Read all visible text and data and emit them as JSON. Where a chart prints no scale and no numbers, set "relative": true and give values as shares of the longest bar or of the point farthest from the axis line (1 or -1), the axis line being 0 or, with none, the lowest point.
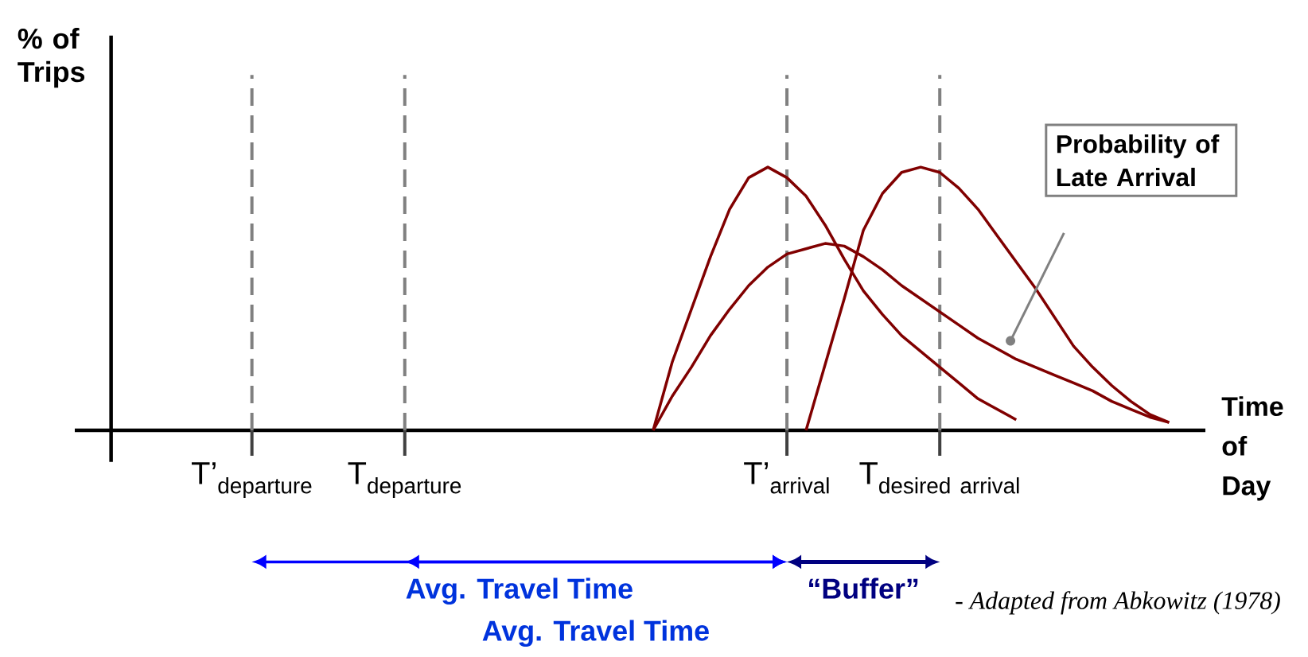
{
  "chart_data": {
    "type": "line",
    "relative": true,
    "ylabel": "% of Trips",
    "xlabel": "Time of Day",
    "categories": [
      null,
      null,
      null,
      null,
      null,
      null,
      null,
      null,
      null,
      "\\mathrm{T’}_{\\mathrm{departure}}",
      null,
      null,
      null,
      null,
      null,
      null,
      null,
      "\\mathrm{T}_{\\mathrm{departure}}",
      null,
      null,
      null,
      null,
      null,
      null,
      null,
      null,
      null,
      null,
      null,
      null,
      null,
      null,
      null,
      null,
      null,
      null,
      null,
      "\\mathrm{T’}_{\\mathrm{arrival}}",
      null,
      null,
      null,
      null,
      null,
      null,
      null,
      "\\mathrm{T}_{\\mathrm{desired\\ arrival}}",
      null,
      null,
      null,
      null,
      null,
      null,
      null,
      null,
      null,
      null,
      null,
      null
    ],
    "ref_lines": [
      {
        "axis": "x",
        "value": "\\mathrm{T’}_{\\mathrm{departure}}",
        "color": "#808080",
        "line_style": "dashed"
      },
      {
        "axis": "x",
        "value": "\\mathrm{T}_{\\mathrm{departure}}",
        "color": "#808080",
        "line_style": "dashed"
      },
      {
        "axis": "x",
        "value": "\\mathrm{T’}_{\\mathrm{arrival}}",
        "color": "#808080",
        "line_style": "dashed"
      },
      {
        "axis": "x",
        "value": "\\mathrm{T}_{\\mathrm{desired\\ arrival}}",
        "color": "#808080",
        "line_style": "dashed"
      }
    ],
    "series": [
      {
        "color": "#800000",
        "values": [
          null,
          null,
          null,
          null,
          null,
          null,
          null,
          null,
          null,
          null,
          null,
          null,
          null,
          null,
          null,
          null,
          null,
          null,
          null,
          null,
          null,
          null,
          null,
          null,
          null,
          null,
          null,
          null,
          null,
          null,
          0,
          0.26,
          0.46,
          0.66,
          0.84,
          0.96,
          1,
          0.96,
          0.89,
          0.78,
          0.65,
          0.53,
          0.44,
          0.36,
          0.3,
          0.24,
          0.18,
          0.12,
          0.08,
          0.04,
          null,
          null,
          null,
          null,
          null,
          null,
          null,
          null
        ]
      },
      {
        "color": "#800000",
        "values": [
          null,
          null,
          null,
          null,
          null,
          null,
          null,
          null,
          null,
          null,
          null,
          null,
          null,
          null,
          null,
          null,
          null,
          null,
          null,
          null,
          null,
          null,
          null,
          null,
          null,
          null,
          null,
          null,
          null,
          null,
          0,
          0.13,
          0.24,
          0.36,
          0.46,
          0.55,
          0.62,
          0.67,
          0.69,
          0.71,
          0.7,
          0.66,
          0.61,
          0.55,
          0.5,
          0.45,
          0.4,
          0.35,
          0.31,
          0.27,
          0.24,
          0.21,
          0.18,
          0.15,
          0.11,
          0.08,
          0.05,
          0.03
        ]
      },
      {
        "color": "#800000",
        "values": [
          null,
          null,
          null,
          null,
          null,
          null,
          null,
          null,
          null,
          null,
          null,
          null,
          null,
          null,
          null,
          null,
          null,
          null,
          null,
          null,
          null,
          null,
          null,
          null,
          null,
          null,
          null,
          null,
          null,
          null,
          null,
          null,
          null,
          null,
          null,
          null,
          null,
          null,
          0,
          0.25,
          0.5,
          0.76,
          0.9,
          0.98,
          1,
          0.98,
          0.92,
          0.84,
          0.74,
          0.64,
          0.54,
          0.43,
          0.32,
          0.24,
          0.17,
          0.11,
          0.06,
          0.03
        ]
      }
    ],
    "annotations": [
      "Probability of Late Arrival",
      "Avg. Travel Time",
      "Avg. Travel Time",
      "“Buffer”",
      "*- Adapted from Abkowitz (1978)*"
    ],
    "marker": "none",
    "line_style": "solid"
  }
}
